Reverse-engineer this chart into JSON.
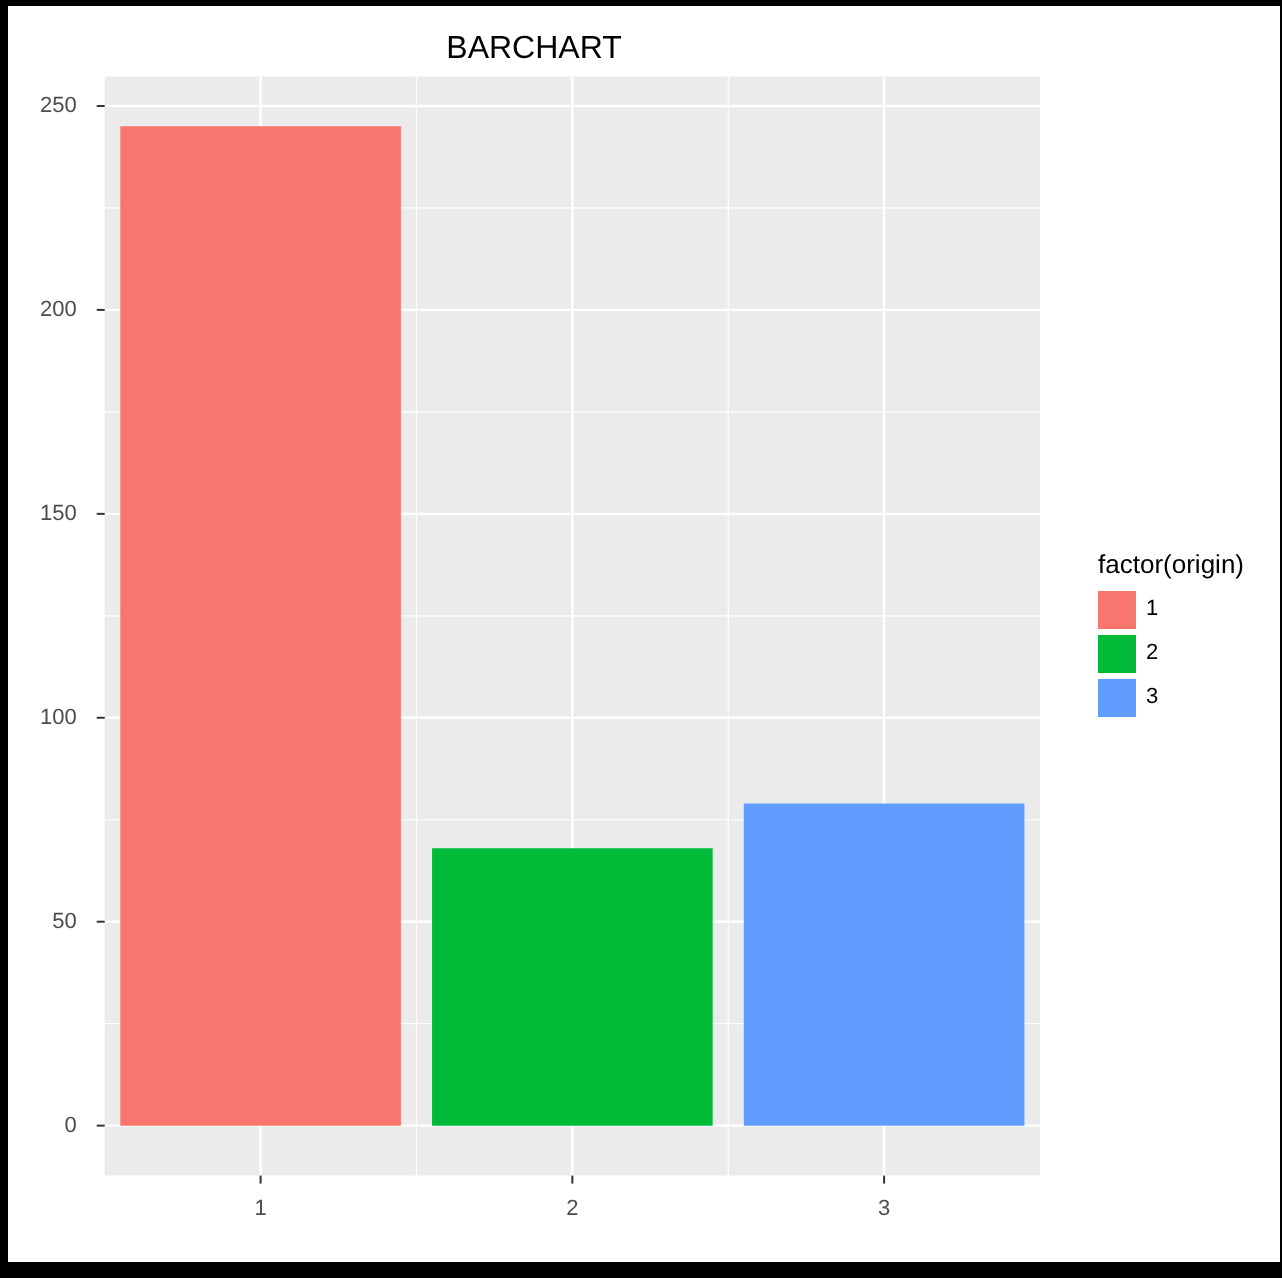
{
  "chart_data": {
    "type": "bar",
    "title": "BARCHART",
    "categories": [
      "1",
      "2",
      "3"
    ],
    "series": [
      {
        "name": "1",
        "color": "#f8766d",
        "values": [
          245,
          null,
          null
        ]
      },
      {
        "name": "2",
        "color": "#00ba38",
        "values": [
          null,
          68,
          null
        ]
      },
      {
        "name": "3",
        "color": "#619cff",
        "values": [
          null,
          null,
          79
        ]
      }
    ],
    "ylim": [
      -12.25,
      257.25
    ],
    "yticks": [
      0,
      50,
      100,
      150,
      200,
      250
    ],
    "grid": true,
    "legend": "right",
    "legend_title": "factor(origin)"
  }
}
